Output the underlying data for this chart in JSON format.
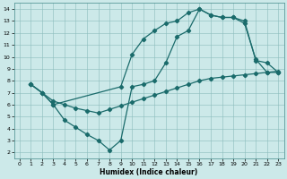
{
  "xlabel": "Humidex (Indice chaleur)",
  "xlim": [
    -0.5,
    23.5
  ],
  "ylim": [
    1.5,
    14.5
  ],
  "xticks": [
    0,
    1,
    2,
    3,
    4,
    5,
    6,
    7,
    8,
    9,
    10,
    11,
    12,
    13,
    14,
    15,
    16,
    17,
    18,
    19,
    20,
    21,
    22,
    23
  ],
  "yticks": [
    2,
    3,
    4,
    5,
    6,
    7,
    8,
    9,
    10,
    11,
    12,
    13,
    14
  ],
  "bg_color": "#cce9e9",
  "line_color": "#1a6b6b",
  "line1_x": [
    1,
    2,
    3,
    9,
    10,
    11,
    12,
    13,
    14,
    15,
    16,
    17,
    18,
    19,
    20,
    21,
    22,
    23
  ],
  "line1_y": [
    7.7,
    7.0,
    6.0,
    7.5,
    10.2,
    11.5,
    12.2,
    12.8,
    13.0,
    13.7,
    14.0,
    13.5,
    13.3,
    13.3,
    13.0,
    9.7,
    9.5,
    8.7
  ],
  "line2_x": [
    1,
    2,
    3,
    4,
    5,
    6,
    7,
    8,
    9,
    10,
    11,
    12,
    13,
    14,
    15,
    16,
    17,
    18,
    19,
    20,
    21,
    22,
    23
  ],
  "line2_y": [
    7.7,
    7.0,
    6.0,
    4.7,
    4.1,
    3.5,
    3.0,
    2.2,
    3.0,
    7.5,
    7.7,
    8.0,
    9.5,
    11.7,
    12.2,
    14.0,
    13.5,
    13.3,
    13.3,
    12.8,
    9.8,
    8.7,
    8.7
  ],
  "line3_x": [
    1,
    2,
    3,
    4,
    5,
    6,
    7,
    8,
    9,
    10,
    11,
    12,
    13,
    14,
    15,
    16,
    17,
    18,
    19,
    20,
    21,
    22,
    23
  ],
  "line3_y": [
    7.7,
    7.0,
    6.3,
    6.0,
    5.7,
    5.5,
    5.3,
    5.6,
    5.9,
    6.2,
    6.5,
    6.8,
    7.1,
    7.4,
    7.7,
    8.0,
    8.2,
    8.3,
    8.4,
    8.5,
    8.6,
    8.7,
    8.8
  ]
}
